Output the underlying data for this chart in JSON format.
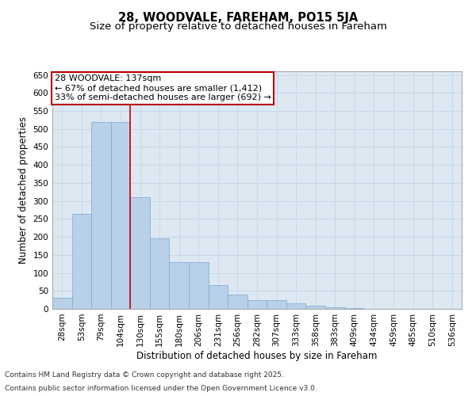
{
  "title": "28, WOODVALE, FAREHAM, PO15 5JA",
  "subtitle": "Size of property relative to detached houses in Fareham",
  "xlabel": "Distribution of detached houses by size in Fareham",
  "ylabel": "Number of detached properties",
  "categories": [
    "28sqm",
    "53sqm",
    "79sqm",
    "104sqm",
    "130sqm",
    "155sqm",
    "180sqm",
    "206sqm",
    "231sqm",
    "256sqm",
    "282sqm",
    "307sqm",
    "333sqm",
    "358sqm",
    "383sqm",
    "409sqm",
    "434sqm",
    "459sqm",
    "485sqm",
    "510sqm",
    "536sqm"
  ],
  "values": [
    30,
    265,
    520,
    520,
    310,
    195,
    130,
    130,
    65,
    40,
    25,
    25,
    15,
    8,
    5,
    2,
    1,
    1,
    0,
    0,
    0
  ],
  "bar_color": "#b8d0e8",
  "bar_edge_color": "#7aaace",
  "red_line_label": "28 WOODVALE: 137sqm",
  "annotation_line1": "← 67% of detached houses are smaller (1,412)",
  "annotation_line2": "33% of semi-detached houses are larger (692) →",
  "annotation_box_facecolor": "#ffffff",
  "annotation_box_edgecolor": "#bb0000",
  "grid_color": "#c8d8e8",
  "background_color": "#dde8f2",
  "ylim": [
    0,
    660
  ],
  "yticks": [
    0,
    50,
    100,
    150,
    200,
    250,
    300,
    350,
    400,
    450,
    500,
    550,
    600,
    650
  ],
  "footer_line1": "Contains HM Land Registry data © Crown copyright and database right 2025.",
  "footer_line2": "Contains public sector information licensed under the Open Government Licence v3.0.",
  "title_fontsize": 10.5,
  "subtitle_fontsize": 9.5,
  "axis_label_fontsize": 8.5,
  "tick_fontsize": 7.5,
  "annotation_fontsize": 8,
  "footer_fontsize": 6.5
}
